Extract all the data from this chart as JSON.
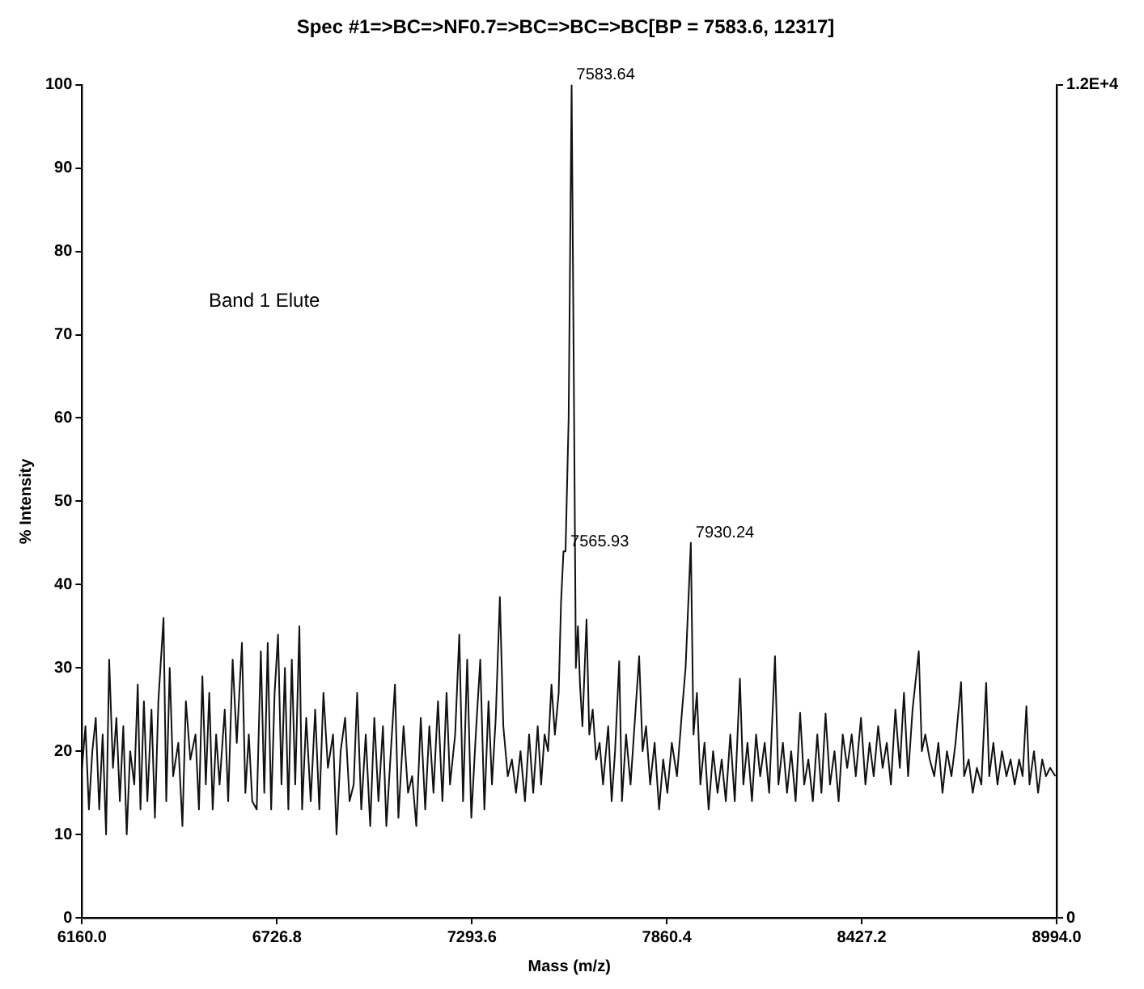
{
  "chart_data": {
    "type": "line",
    "title": "Spec #1=>BC=>NF0.7=>BC=>BC=>BC[BP = 7583.6, 12317]",
    "xlabel": "Mass (m/z)",
    "ylabel": "% Intensity",
    "xlim": [
      6160,
      8994
    ],
    "xticks": [
      {
        "value": 6160,
        "label": "6160.0"
      },
      {
        "value": 6726.8,
        "label": "6726.8"
      },
      {
        "value": 7293.6,
        "label": "7293.6"
      },
      {
        "value": 7860.4,
        "label": "7860.4"
      },
      {
        "value": 8427.2,
        "label": "8427.2"
      },
      {
        "value": 8994,
        "label": "8994.0"
      }
    ],
    "ylim": [
      0,
      100
    ],
    "yticks": [
      0,
      10,
      20,
      30,
      40,
      50,
      60,
      70,
      80,
      90,
      100
    ],
    "y2lim": [
      0,
      12317
    ],
    "y2ticks": [
      0,
      {
        "value": 12317,
        "label": "1.2E+4"
      }
    ],
    "legend": false,
    "marker": "none",
    "line_style": "solid",
    "annotations": [
      "Band 1 Elute",
      {
        "text": "7583.64",
        "x": 7583.64,
        "y": 100
      },
      {
        "text": "7565.93",
        "x": 7565.93,
        "y": 44
      },
      {
        "text": "7930.24",
        "x": 7930.24,
        "y": 45
      }
    ],
    "series": [
      {
        "color": "#111111",
        "x": [
          6160,
          6170,
          6180,
          6190,
          6200,
          6210,
          6220,
          6230,
          6239,
          6250,
          6260,
          6270,
          6280,
          6290,
          6300,
          6312,
          6322,
          6330,
          6340,
          6350,
          6362,
          6372,
          6382,
          6397,
          6405,
          6415,
          6425,
          6440,
          6452,
          6462,
          6475,
          6490,
          6500,
          6510,
          6520,
          6530,
          6540,
          6550,
          6560,
          6575,
          6585,
          6598,
          6610,
          6625,
          6635,
          6645,
          6655,
          6668,
          6680,
          6690,
          6700,
          6710,
          6720,
          6730,
          6740,
          6750,
          6760,
          6770,
          6780,
          6792,
          6800,
          6812,
          6825,
          6838,
          6850,
          6862,
          6875,
          6890,
          6900,
          6912,
          6925,
          6938,
          6950,
          6960,
          6972,
          6985,
          6998,
          7010,
          7022,
          7035,
          7045,
          7058,
          7070,
          7080,
          7095,
          7108,
          7120,
          7132,
          7145,
          7158,
          7170,
          7182,
          7195,
          7208,
          7220,
          7230,
          7245,
          7257,
          7268,
          7280,
          7292,
          7305,
          7318,
          7330,
          7342,
          7352,
          7363,
          7375,
          7385,
          7398,
          7410,
          7422,
          7435,
          7448,
          7460,
          7472,
          7485,
          7495,
          7505,
          7515,
          7525,
          7535,
          7546,
          7553,
          7560,
          7565.93,
          7575,
          7583.64,
          7590,
          7596,
          7602,
          7608,
          7615,
          7627,
          7635,
          7645,
          7655,
          7665,
          7675,
          7690,
          7700,
          7710,
          7722,
          7730,
          7742,
          7755,
          7768,
          7780,
          7790,
          7800,
          7812,
          7825,
          7838,
          7850,
          7862,
          7875,
          7890,
          7905,
          7915,
          7930.24,
          7938,
          7948,
          7958,
          7970,
          7982,
          7995,
          8008,
          8020,
          8032,
          8045,
          8058,
          8073,
          8083,
          8095,
          8108,
          8120,
          8132,
          8145,
          8158,
          8175,
          8185,
          8198,
          8210,
          8222,
          8235,
          8248,
          8260,
          8272,
          8285,
          8298,
          8310,
          8322,
          8335,
          8348,
          8360,
          8372,
          8385,
          8398,
          8410,
          8425,
          8438,
          8450,
          8462,
          8475,
          8488,
          8500,
          8512,
          8525,
          8538,
          8550,
          8562,
          8575,
          8593,
          8602,
          8612,
          8625,
          8638,
          8650,
          8662,
          8675,
          8688,
          8700,
          8716,
          8725,
          8738,
          8750,
          8762,
          8775,
          8789,
          8798,
          8810,
          8822,
          8835,
          8848,
          8860,
          8872,
          8885,
          8895,
          8906,
          8915,
          8928,
          8940,
          8952,
          8963,
          8975,
          8990
        ],
        "values": [
          18,
          23,
          13,
          20,
          24,
          13,
          22,
          10,
          31,
          18,
          24,
          14,
          23,
          10,
          20,
          16,
          28,
          13,
          26,
          14,
          25,
          12,
          26,
          36,
          14,
          30,
          17,
          21,
          11,
          26,
          19,
          22,
          13,
          29,
          16,
          27,
          13,
          22,
          16,
          25,
          14,
          31,
          21,
          33,
          15,
          22,
          14,
          13,
          32,
          15,
          33,
          13,
          27,
          34,
          16,
          30,
          13,
          31,
          16,
          35,
          13,
          24,
          14,
          25,
          13,
          27,
          18,
          22,
          10,
          20,
          24,
          14,
          16,
          27,
          13,
          22,
          11,
          24,
          14,
          23,
          11,
          20,
          28,
          12,
          23,
          15,
          17,
          11,
          24,
          13,
          23,
          15,
          26,
          14,
          27,
          16,
          22,
          34,
          14,
          31,
          12,
          22,
          31,
          13,
          26,
          16,
          24,
          38.5,
          23,
          17,
          19,
          15,
          20,
          14,
          22,
          15,
          23,
          16,
          22,
          20,
          28,
          22,
          27,
          38,
          44,
          44,
          60,
          100,
          65,
          30,
          35,
          28,
          23,
          35.8,
          22,
          25,
          19,
          21,
          16,
          23,
          14,
          20,
          30.8,
          14,
          22,
          16,
          24,
          31.4,
          20,
          23,
          16,
          21,
          13,
          19,
          15,
          21,
          17,
          25,
          30,
          45,
          22,
          27,
          16,
          21,
          13,
          20,
          15,
          19,
          14,
          22,
          14,
          28.7,
          16,
          21,
          14,
          22,
          17,
          21,
          15,
          31.4,
          16,
          21,
          15,
          20,
          14,
          24.6,
          16,
          19,
          14,
          22,
          15,
          24.5,
          16,
          20,
          14,
          22,
          18,
          22,
          17,
          24,
          16,
          21,
          17,
          23,
          18,
          21,
          16,
          25,
          18,
          27,
          17,
          25,
          32,
          20,
          22,
          19,
          17,
          21,
          15,
          20,
          17,
          21,
          28.3,
          17,
          19,
          15,
          18,
          16,
          28.2,
          17,
          21,
          16,
          20,
          17,
          19,
          16,
          19,
          17,
          25.4,
          16,
          20,
          15,
          19,
          17,
          18,
          17
        ]
      }
    ]
  }
}
